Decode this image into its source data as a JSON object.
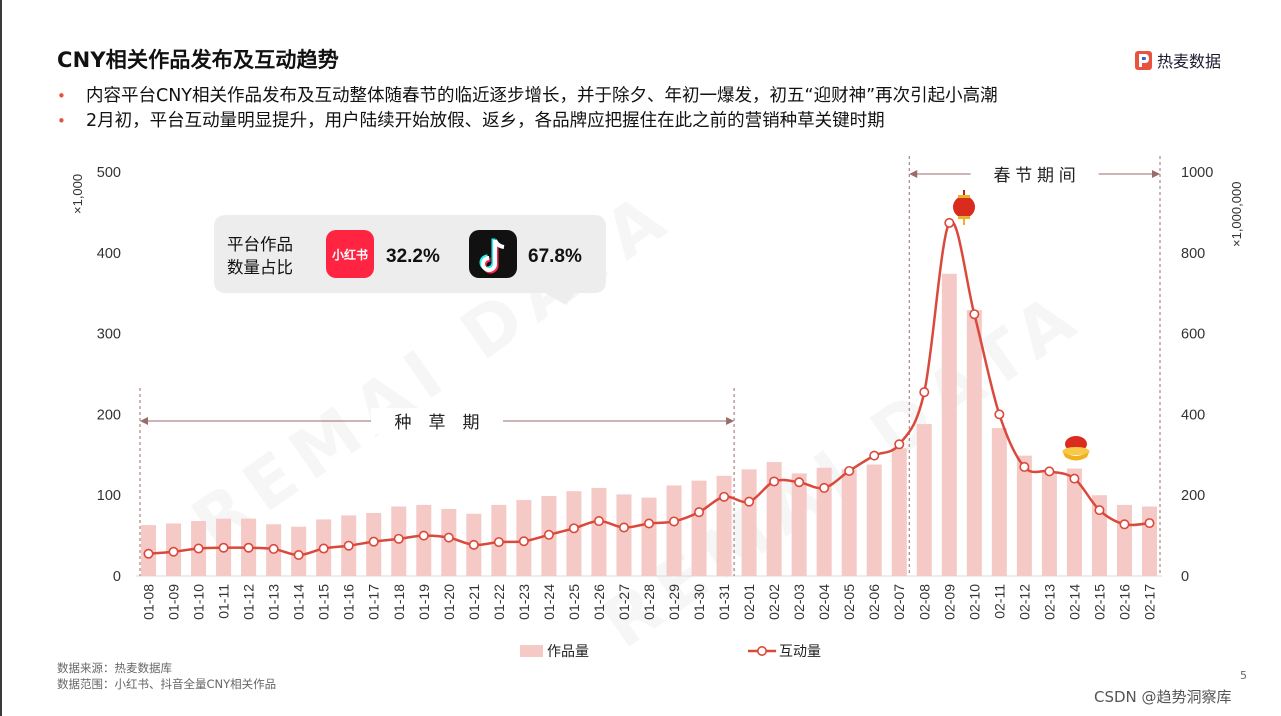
{
  "header": {
    "title": "CNY相关作品发布及互动趋势",
    "logo_text": "热麦数据",
    "bullets": [
      "内容平台CNY相关作品发布及互动整体随春节的临近逐步增长，并于除夕、年初一爆发，初五“迎财神”再次引起小高潮",
      "2月初，平台互动量明显提升，用户陆续开始放假、返乡，各品牌应把握住在此之前的营销种草关键时期"
    ]
  },
  "share_box": {
    "label": [
      "平台作品",
      "数量占比"
    ],
    "xiaohongshu_icon_text": "小红书",
    "xiaohongshu_share": "32.2%",
    "douyin_share": "67.8%"
  },
  "chart_data": {
    "type": "bar",
    "categories": [
      "01-08",
      "01-09",
      "01-10",
      "01-11",
      "01-12",
      "01-13",
      "01-14",
      "01-15",
      "01-16",
      "01-17",
      "01-18",
      "01-19",
      "01-20",
      "01-21",
      "01-22",
      "01-23",
      "01-24",
      "01-25",
      "01-26",
      "01-27",
      "01-28",
      "01-29",
      "01-30",
      "01-31",
      "02-01",
      "02-02",
      "02-03",
      "02-04",
      "02-05",
      "02-06",
      "02-07",
      "02-08",
      "02-09",
      "02-10",
      "02-11",
      "02-12",
      "02-13",
      "02-14",
      "02-15",
      "02-16",
      "02-17"
    ],
    "series": [
      {
        "name": "作品量",
        "type": "bar",
        "axis": "left",
        "color": "#f4c9c6",
        "values": [
          63,
          65,
          68,
          71,
          71,
          64,
          61,
          70,
          75,
          78,
          86,
          88,
          83,
          77,
          88,
          94,
          99,
          105,
          109,
          101,
          97,
          112,
          118,
          124,
          132,
          141,
          127,
          134,
          132,
          138,
          158,
          188,
          374,
          329,
          183,
          149,
          128,
          133,
          100,
          88,
          86
        ]
      },
      {
        "name": "互动量",
        "type": "line",
        "axis": "right",
        "color": "#d9493c",
        "values": [
          55,
          60,
          68,
          70,
          70,
          67,
          52,
          68,
          75,
          85,
          92,
          100,
          95,
          77,
          84,
          86,
          102,
          118,
          136,
          120,
          130,
          135,
          158,
          196,
          184,
          234,
          232,
          218,
          260,
          298,
          326,
          455,
          874,
          648,
          400,
          270,
          259,
          241,
          163,
          128,
          131
        ]
      }
    ],
    "y_left": {
      "label": "×1,000",
      "ticks": [
        0,
        100,
        200,
        300,
        400,
        500
      ],
      "range": [
        0,
        500
      ]
    },
    "y_right": {
      "label": "×1,000,000",
      "ticks": [
        0,
        200,
        400,
        600,
        800,
        1000
      ],
      "range": [
        0,
        1000
      ]
    },
    "grid": false,
    "legend": "bottom",
    "annotations": {
      "planting_period": "种　草　期",
      "spring_festival": "春 节 期 间"
    }
  },
  "footer": {
    "source": "数据来源：热麦数据库",
    "scope": "数据范围：小红书、抖音全量CNY相关作品",
    "page_number": "5",
    "credit": "CSDN @趋势洞察库"
  }
}
